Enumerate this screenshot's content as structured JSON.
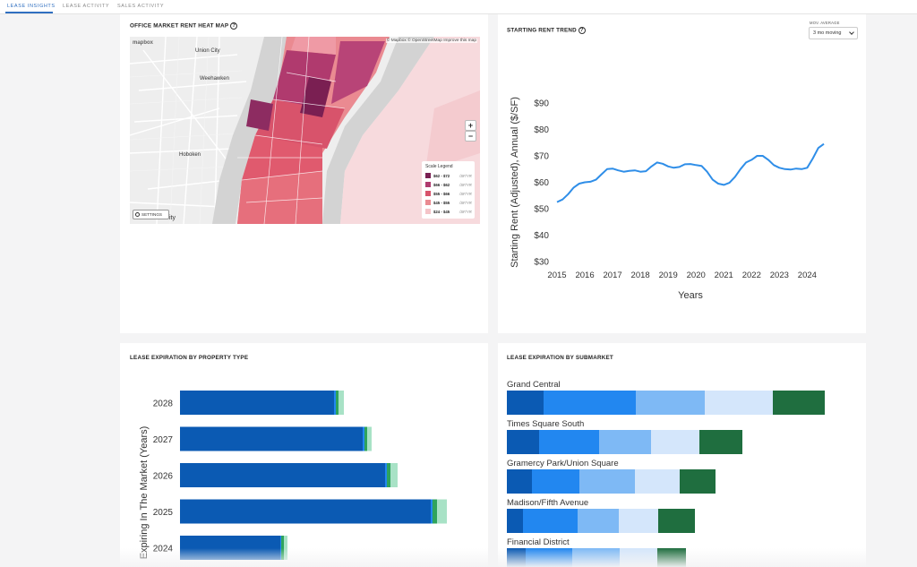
{
  "nav": {
    "tabs": [
      {
        "label": "LEASE INSIGHTS",
        "active": true
      },
      {
        "label": "LEASE ACTIVITY",
        "active": false
      },
      {
        "label": "SALES ACTIVITY",
        "active": false
      }
    ]
  },
  "heatmap": {
    "title": "OFFICE MARKET RENT HEAT MAP",
    "help_icon": "question-circle-icon",
    "attribution": "© Mapbox © OpenStreetMap Improve this map",
    "logo": "mapbox",
    "place_labels": {
      "union_city": "Union City",
      "weehawken": "Weehawken",
      "hoboken": "Hoboken",
      "city_fragment": "ity"
    },
    "zoom_in": "+",
    "zoom_out": "−",
    "settings_label": "SETTINGS",
    "legend": {
      "title": "Scale Legend",
      "items": [
        {
          "range": "$62 - $72",
          "unit": "/SF/YR",
          "color": "#7a1f52"
        },
        {
          "range": "$66 - $62",
          "unit": "/SF/YR",
          "color": "#b03a6e"
        },
        {
          "range": "$55 - $66",
          "unit": "/SF/YR",
          "color": "#d8536b"
        },
        {
          "range": "$45 - $55",
          "unit": "/SF/YR",
          "color": "#ea8a91"
        },
        {
          "range": "$24 - $45",
          "unit": "/SF/YR",
          "color": "#f4c4c8"
        }
      ]
    }
  },
  "trend": {
    "title": "STARTING RENT TREND",
    "help_icon": "question-circle-icon",
    "mov_label": "MOV. AVERAGE",
    "mov_value": "3 mo moving",
    "chart_data": {
      "type": "line",
      "xlabel": "Years",
      "ylabel": "Starting Rent (Adjusted), Annual ($/SF)",
      "x_ticks": [
        "2015",
        "2016",
        "2017",
        "2018",
        "2019",
        "2020",
        "2021",
        "2022",
        "2023",
        "2024"
      ],
      "y_ticks": [
        "$30",
        "$40",
        "$50",
        "$60",
        "$70",
        "$80",
        "$90"
      ],
      "xlim": [
        2015,
        2024.6
      ],
      "ylim": [
        30,
        90
      ],
      "line_color": "#2f8ee8",
      "series": [
        {
          "x": [
            2015.0,
            2015.2,
            2015.4,
            2015.6,
            2015.8,
            2016.0,
            2016.2,
            2016.4,
            2016.6,
            2016.8,
            2017.0,
            2017.2,
            2017.4,
            2017.6,
            2017.8,
            2018.0,
            2018.2,
            2018.4,
            2018.6,
            2018.8,
            2019.0,
            2019.2,
            2019.4,
            2019.6,
            2019.8,
            2020.0,
            2020.2,
            2020.4,
            2020.6,
            2020.8,
            2021.0,
            2021.2,
            2021.4,
            2021.6,
            2021.8,
            2022.0,
            2022.2,
            2022.4,
            2022.6,
            2022.8,
            2023.0,
            2023.2,
            2023.4,
            2023.6,
            2023.8,
            2024.0,
            2024.2,
            2024.4,
            2024.6
          ],
          "y": [
            52.5,
            53.5,
            55.5,
            58,
            59.5,
            60,
            60.2,
            61,
            63,
            65,
            65.2,
            64.5,
            64,
            64.3,
            64.5,
            64,
            64.2,
            66,
            67.5,
            67,
            66,
            65.5,
            65.8,
            66.8,
            66.9,
            66.5,
            66.2,
            64,
            61,
            59.5,
            59,
            59.8,
            62,
            65,
            67.5,
            68.5,
            70,
            70,
            68.5,
            66.5,
            65.5,
            65,
            64.8,
            65.2,
            65,
            65.5,
            69,
            73,
            74.5
          ]
        }
      ]
    }
  },
  "by_type": {
    "title": "LEASE EXPIRATION BY PROPERTY TYPE",
    "chart_data": {
      "type": "bar",
      "orientation": "horizontal",
      "stacked": true,
      "ylabel": "Expiring In The Market (Years)",
      "categories": [
        "2028",
        "2027",
        "2026",
        "2025",
        "2024"
      ],
      "segment_colors": [
        "#0b5ab3",
        "#2287f0",
        "#2fa35c",
        "#a8e2c6"
      ],
      "series": [
        {
          "values": [
            172,
            204,
            229,
            280,
            112
          ]
        },
        {
          "values": [
            2,
            2,
            2,
            2,
            1
          ]
        },
        {
          "values": [
            3,
            3,
            4,
            5,
            3
          ]
        },
        {
          "values": [
            6,
            5,
            8,
            11,
            4
          ]
        }
      ]
    }
  },
  "by_submarket": {
    "title": "LEASE EXPIRATION BY SUBMARKET",
    "chart_data": {
      "type": "bar",
      "orientation": "horizontal",
      "stacked": true,
      "categories": [
        "Grand Central",
        "Times Square South",
        "Gramercy Park/Union Square",
        "Madison/Fifth Avenue",
        "Financial District"
      ],
      "segment_colors": [
        "#0b5ab3",
        "#2287f0",
        "#7eb9f5",
        "#d4e6fb",
        "#1f6e3f"
      ],
      "series": [
        {
          "values": [
            41,
            36,
            28,
            18,
            21
          ]
        },
        {
          "values": [
            103,
            67,
            53,
            61,
            52
          ]
        },
        {
          "values": [
            77,
            58,
            62,
            46,
            53
          ]
        },
        {
          "values": [
            76,
            54,
            50,
            44,
            42
          ]
        },
        {
          "values": [
            58,
            48,
            40,
            41,
            32
          ]
        }
      ]
    }
  }
}
